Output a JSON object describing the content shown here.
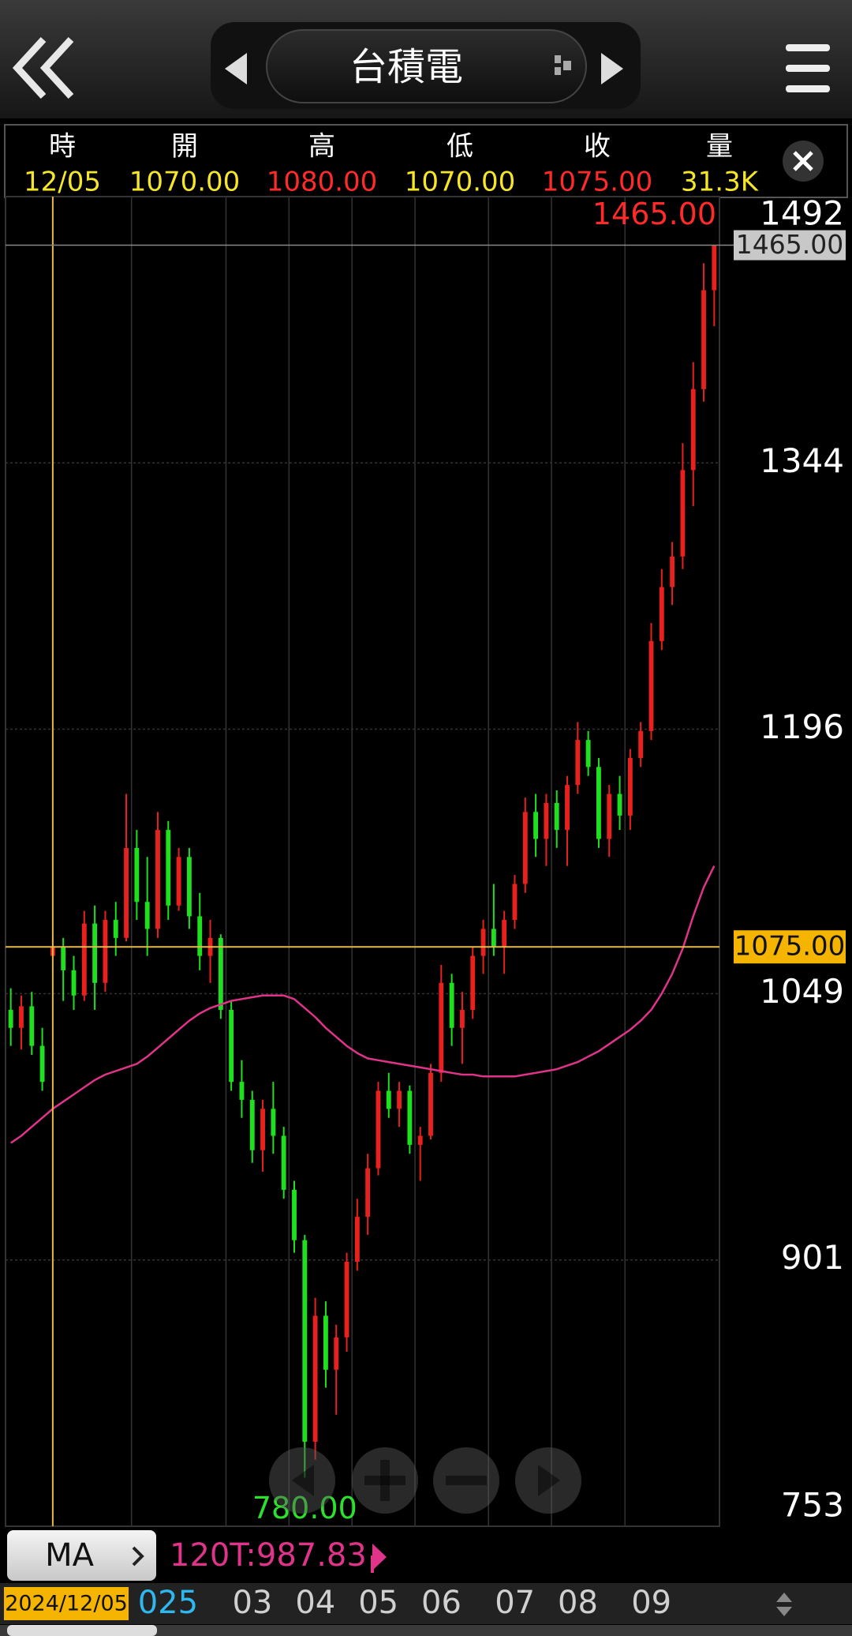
{
  "header": {
    "title": "台積電"
  },
  "info": {
    "labels": [
      "時",
      "開",
      "高",
      "低",
      "收",
      "量"
    ],
    "date": "12/05",
    "open": {
      "value": 1070,
      "label": "1070.00"
    },
    "high": {
      "value": 1080,
      "label": "1080.00"
    },
    "low": {
      "value": 1070,
      "label": "1070.00"
    },
    "close": {
      "value": 1075,
      "label": "1075.00"
    },
    "volume": "31.3K"
  },
  "ma_button": "MA",
  "chart_data": {
    "type": "candlestick",
    "categories": [
      null,
      null,
      null,
      null,
      null,
      null,
      null,
      null,
      null,
      null,
      null,
      null,
      "025",
      null,
      null,
      null,
      null,
      null,
      null,
      null,
      null,
      "03",
      null,
      null,
      null,
      null,
      null,
      "04",
      null,
      null,
      null,
      null,
      null,
      "05",
      null,
      null,
      null,
      null,
      null,
      "06",
      null,
      null,
      null,
      null,
      null,
      null,
      "07",
      null,
      null,
      null,
      null,
      null,
      "08",
      null,
      null,
      null,
      null,
      null,
      null,
      "09",
      null,
      null,
      null,
      null,
      null,
      null,
      null,
      null
    ],
    "open": [
      1040,
      1030,
      1042,
      1020,
      1070,
      1075,
      1062,
      1048,
      1088,
      1055,
      1090,
      1080,
      1130,
      1100,
      1085,
      1140,
      1098,
      1125,
      1092,
      1070,
      1080,
      1040,
      1000,
      990,
      962,
      985,
      970,
      940,
      912,
      800,
      870,
      840,
      858,
      900,
      925,
      952,
      995,
      985,
      995,
      965,
      970,
      1005,
      1055,
      1030,
      1040,
      1070,
      1085,
      1075,
      1090,
      1110,
      1150,
      1135,
      1155,
      1140,
      1165,
      1190,
      1175,
      1135,
      1160,
      1148,
      1180,
      1195,
      1245,
      1275,
      1292,
      1340,
      1385,
      1440
    ],
    "high": [
      1052,
      1048,
      1050,
      1030,
      1080,
      1080,
      1070,
      1095,
      1098,
      1095,
      1100,
      1160,
      1140,
      1125,
      1150,
      1145,
      1130,
      1130,
      1105,
      1090,
      1082,
      1045,
      1012,
      995,
      990,
      1000,
      975,
      945,
      915,
      880,
      878,
      865,
      905,
      935,
      960,
      1000,
      1005,
      1000,
      998,
      975,
      1010,
      1065,
      1060,
      1050,
      1075,
      1090,
      1110,
      1095,
      1115,
      1158,
      1160,
      1160,
      1162,
      1170,
      1200,
      1195,
      1180,
      1165,
      1170,
      1185,
      1200,
      1255,
      1285,
      1300,
      1355,
      1400,
      1455,
      1465
    ],
    "low": [
      1020,
      1018,
      1015,
      995,
      1070,
      1045,
      1040,
      1045,
      1040,
      1050,
      1070,
      1078,
      1090,
      1070,
      1080,
      1090,
      1095,
      1085,
      1062,
      1055,
      1035,
      995,
      980,
      955,
      950,
      960,
      935,
      905,
      780,
      790,
      830,
      815,
      850,
      895,
      915,
      948,
      980,
      975,
      960,
      945,
      968,
      1000,
      1020,
      1010,
      1035,
      1060,
      1070,
      1060,
      1085,
      1105,
      1125,
      1120,
      1130,
      1120,
      1160,
      1170,
      1130,
      1125,
      1140,
      1140,
      1175,
      1190,
      1240,
      1265,
      1285,
      1320,
      1378,
      1420
    ],
    "close": [
      1030,
      1042,
      1020,
      1000,
      1075,
      1062,
      1048,
      1088,
      1055,
      1090,
      1080,
      1130,
      1100,
      1085,
      1140,
      1098,
      1125,
      1092,
      1070,
      1080,
      1040,
      1000,
      990,
      962,
      985,
      970,
      940,
      912,
      800,
      870,
      840,
      858,
      900,
      925,
      952,
      995,
      985,
      995,
      965,
      970,
      1005,
      1055,
      1030,
      1040,
      1070,
      1085,
      1075,
      1090,
      1110,
      1150,
      1135,
      1155,
      1140,
      1165,
      1190,
      1175,
      1135,
      1160,
      1148,
      1180,
      1195,
      1245,
      1275,
      1292,
      1340,
      1385,
      1440,
      1465
    ],
    "up_color": "#e8201e",
    "down_color": "#1fe01f",
    "series": [
      {
        "name": "120T:987.83",
        "color": "#e0338a",
        "values": [
          966,
          970,
          975,
          980,
          985,
          989,
          993,
          997,
          1001,
          1004,
          1006,
          1008,
          1010,
          1014,
          1019,
          1024,
          1029,
          1034,
          1038,
          1041,
          1043,
          1045,
          1046,
          1047,
          1048,
          1048,
          1048,
          1046,
          1041,
          1036,
          1030,
          1025,
          1020,
          1016,
          1013,
          1012,
          1011,
          1010,
          1009,
          1008,
          1007,
          1006,
          1005,
          1004,
          1004,
          1003,
          1003,
          1003,
          1003,
          1004,
          1005,
          1006,
          1007,
          1009,
          1011,
          1014,
          1017,
          1021,
          1025,
          1029,
          1034,
          1040,
          1049,
          1060,
          1074,
          1092,
          1108,
          1120
        ]
      }
    ],
    "ylim": [
      753,
      1492
    ],
    "yticks": [
      753,
      901,
      1049,
      1196,
      1344,
      1492
    ],
    "grid": true,
    "crosshair": {
      "date": "2024/12/05",
      "value": 1075,
      "label": "1075.00"
    },
    "last_price": {
      "value": 1465,
      "label": "1465.00"
    },
    "high_marker": {
      "value": 1465,
      "label": "1465.00"
    },
    "low_marker": {
      "value": 780,
      "label": "780.00"
    }
  }
}
